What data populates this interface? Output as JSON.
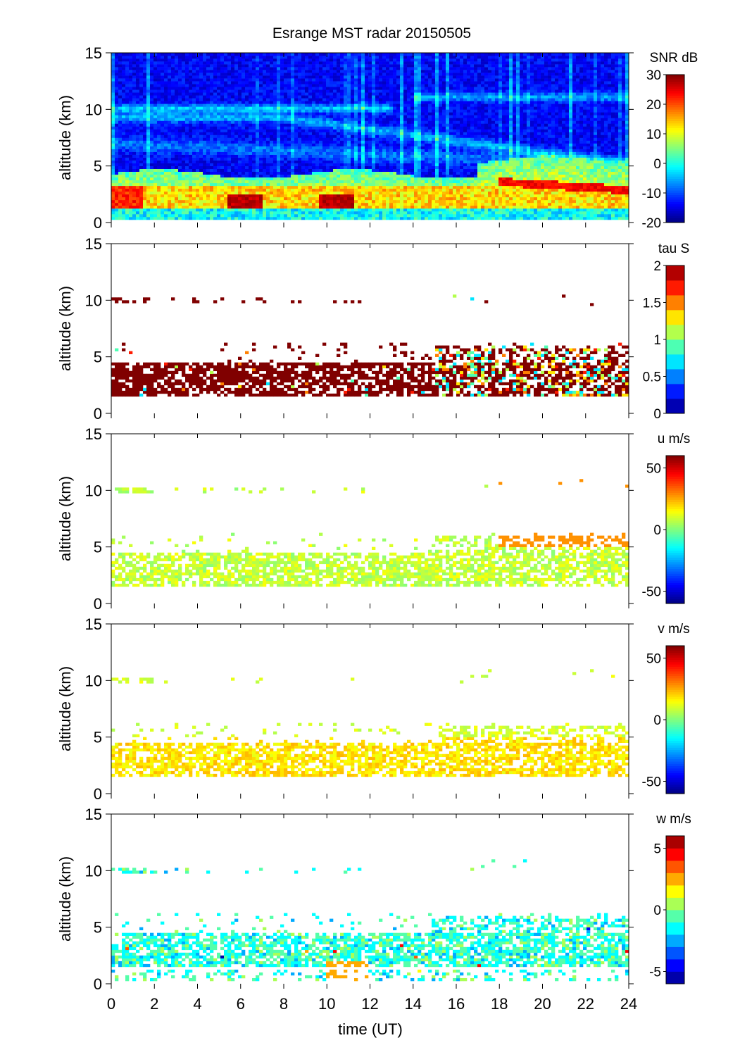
{
  "chart_data": {
    "type": "heatmap",
    "title": "Esrange MST radar 20150505",
    "xlabel": "time (UT)",
    "xlim": [
      0,
      24
    ],
    "x_ticks": [
      "0",
      "2",
      "4",
      "6",
      "8",
      "10",
      "12",
      "14",
      "16",
      "18",
      "20",
      "22",
      "24"
    ],
    "panels": [
      {
        "name": "snr",
        "ylabel": "altitude (km)",
        "ylim": [
          0,
          15
        ],
        "y_ticks": [
          "0",
          "5",
          "10",
          "15"
        ],
        "colorbar": {
          "label": "SNR dB",
          "range": [
            -20,
            30
          ],
          "ticks": [
            "30",
            "20",
            "10",
            "0",
            "-10",
            "-20"
          ],
          "tick_values": [
            30,
            20,
            10,
            0,
            -10,
            -20
          ],
          "levels": 0
        }
      },
      {
        "name": "tau",
        "ylabel": "altitude (km)",
        "ylim": [
          0,
          15
        ],
        "y_ticks": [
          "0",
          "5",
          "10",
          "15"
        ],
        "colorbar": {
          "label": "tau S",
          "range": [
            0,
            2
          ],
          "ticks": [
            "2",
            "1.5",
            "1",
            "0.5",
            "0"
          ],
          "tick_values": [
            2,
            1.5,
            1,
            0.5,
            0
          ],
          "levels": 10
        }
      },
      {
        "name": "u",
        "ylabel": "altitude (km)",
        "ylim": [
          0,
          15
        ],
        "y_ticks": [
          "0",
          "5",
          "10",
          "15"
        ],
        "colorbar": {
          "label": "u m/s",
          "range": [
            -60,
            60
          ],
          "ticks": [
            "50",
            "0",
            "-50"
          ],
          "tick_values": [
            50,
            0,
            -50
          ],
          "levels": 0
        }
      },
      {
        "name": "v",
        "ylabel": "altitude (km)",
        "ylim": [
          0,
          15
        ],
        "y_ticks": [
          "0",
          "5",
          "10",
          "15"
        ],
        "colorbar": {
          "label": "v m/s",
          "range": [
            -60,
            60
          ],
          "ticks": [
            "50",
            "0",
            "-50"
          ],
          "tick_values": [
            50,
            0,
            -50
          ],
          "levels": 0
        }
      },
      {
        "name": "w",
        "ylabel": "altitude (km)",
        "ylim": [
          0,
          15
        ],
        "y_ticks": [
          "0",
          "5",
          "10",
          "15"
        ],
        "colorbar": {
          "label": "w m/s",
          "range": [
            -6,
            6
          ],
          "ticks": [
            "5",
            "0",
            "-5"
          ],
          "tick_values": [
            5,
            0,
            -5
          ],
          "levels": 12
        }
      }
    ]
  }
}
